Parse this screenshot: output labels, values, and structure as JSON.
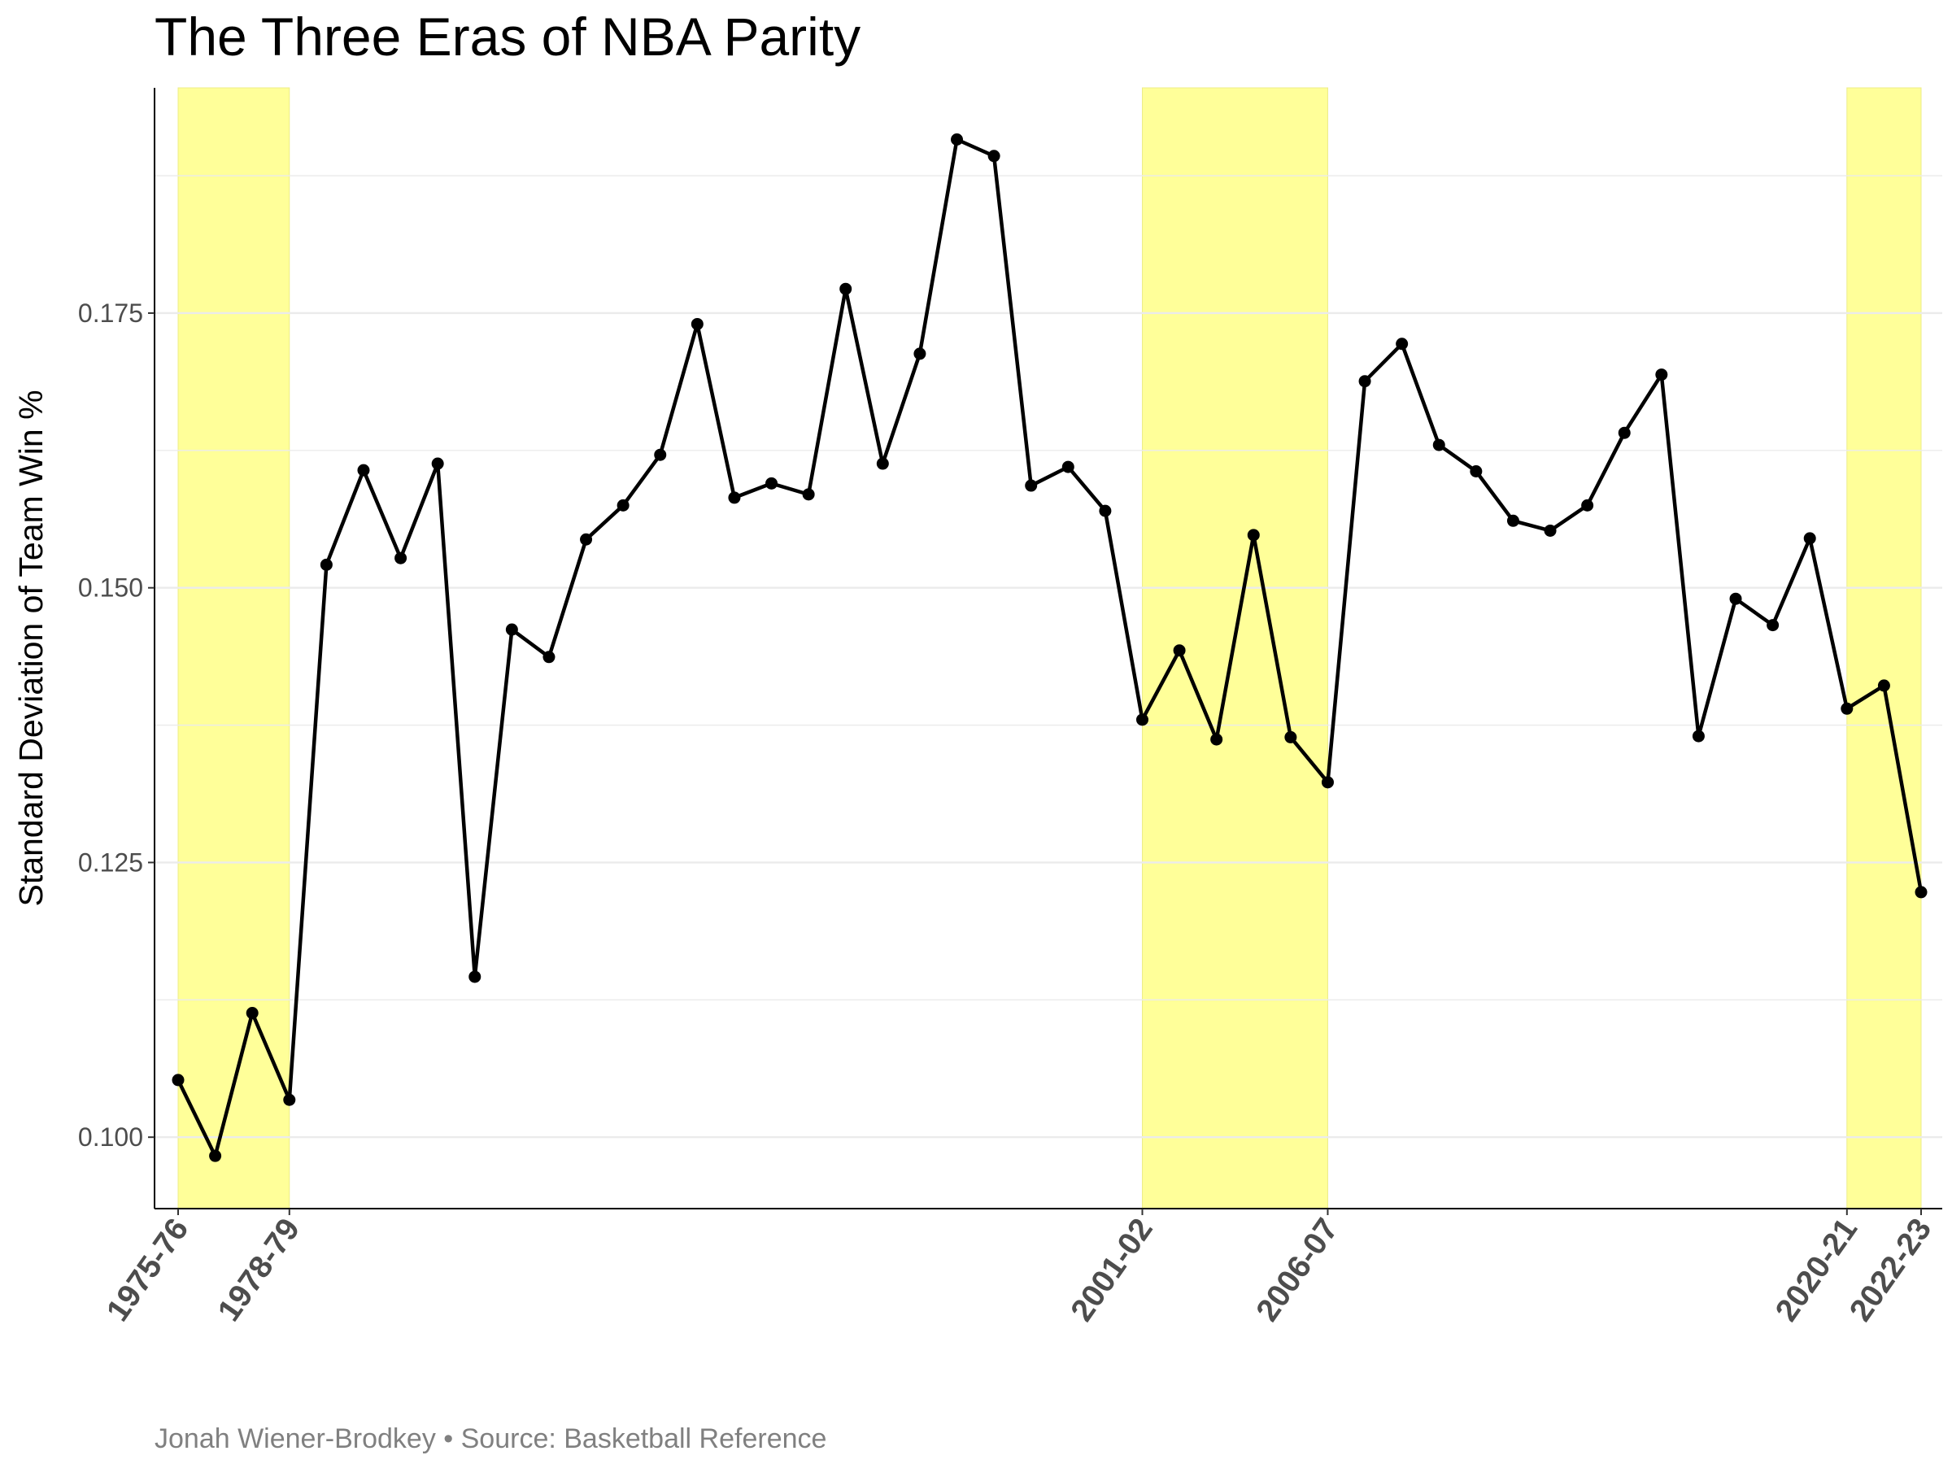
{
  "title": "The Three Eras of NBA Parity",
  "caption": "Jonah Wiener-Brodkey • Source: Basketball Reference",
  "colors": {
    "highlight": "#ffff99",
    "line": "#000000",
    "grid": "#ebebeb",
    "tick_text": "#4d4d4d",
    "caption_text": "#808080"
  },
  "chart_data": {
    "type": "line",
    "title": "The Three Eras of NBA Parity",
    "xlabel": "",
    "ylabel": "Standard Deviation of Team Win %",
    "ylim": [
      0.0935,
      0.1955
    ],
    "y_ticks": [
      0.1,
      0.125,
      0.15,
      0.175
    ],
    "y_tick_labels": [
      "0.100",
      "0.125",
      "0.150",
      "0.175"
    ],
    "grid": "horizontal major and minor",
    "legend": "none",
    "x_tick_labels": [
      "1975-76",
      "1978-79",
      "2001-02",
      "2006-07",
      "2020-21",
      "2022-23"
    ],
    "highlighted_ranges": [
      {
        "start": "1975-76",
        "end": "1978-79"
      },
      {
        "start": "2001-02",
        "end": "2006-07"
      },
      {
        "start": "2020-21",
        "end": "2022-23"
      }
    ],
    "x": [
      "1975-76",
      "1976-77",
      "1977-78",
      "1978-79",
      "1979-80",
      "1980-81",
      "1981-82",
      "1982-83",
      "1983-84",
      "1984-85",
      "1985-86",
      "1986-87",
      "1987-88",
      "1988-89",
      "1989-90",
      "1990-91",
      "1991-92",
      "1992-93",
      "1993-94",
      "1994-95",
      "1995-96",
      "1996-97",
      "1997-98",
      "1998-99",
      "1999-00",
      "2000-01",
      "2001-02",
      "2002-03",
      "2003-04",
      "2004-05",
      "2005-06",
      "2006-07",
      "2007-08",
      "2008-09",
      "2009-10",
      "2010-11",
      "2011-12",
      "2012-13",
      "2013-14",
      "2014-15",
      "2015-16",
      "2016-17",
      "2017-18",
      "2018-19",
      "2019-20",
      "2020-21",
      "2021-22",
      "2022-23"
    ],
    "values": [
      0.1052,
      0.0983,
      0.1113,
      0.1034,
      0.1521,
      0.1607,
      0.1527,
      0.1613,
      0.1146,
      0.1462,
      0.1437,
      0.1544,
      0.1575,
      0.1621,
      0.174,
      0.1582,
      0.1595,
      0.1585,
      0.1772,
      0.1613,
      0.1713,
      0.1908,
      0.1893,
      0.1593,
      0.161,
      0.157,
      0.138,
      0.1443,
      0.1362,
      0.1548,
      0.1364,
      0.1323,
      0.1688,
      0.1722,
      0.163,
      0.1606,
      0.1561,
      0.1552,
      0.1575,
      0.1641,
      0.1694,
      0.1365,
      0.149,
      0.1466,
      0.1545,
      0.139,
      0.1411,
      0.1223
    ]
  }
}
